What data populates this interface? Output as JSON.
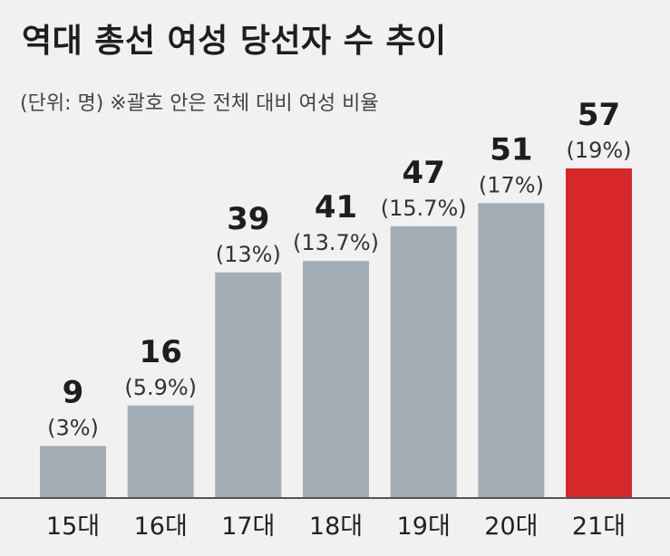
{
  "chart_data": {
    "type": "bar",
    "title": "역대 총선 여성 당선자 수 추이",
    "subtitle": "(단위: 명) ※괄호 안은 전체 대비 여성 비율",
    "categories": [
      "15대",
      "16대",
      "17대",
      "18대",
      "19대",
      "20대",
      "21대"
    ],
    "values": [
      9,
      16,
      39,
      41,
      47,
      51,
      57
    ],
    "percent_labels": [
      "(3%)",
      "(5.9%)",
      "(13%)",
      "(13.7%)",
      "(15.7%)",
      "(17%)",
      "(19%)"
    ],
    "highlight_index": 6,
    "colors": {
      "bar": "#a2adb5",
      "highlight": "#d7272b",
      "baseline": "#555555"
    },
    "ylim": [
      0,
      57
    ],
    "grid": false
  }
}
